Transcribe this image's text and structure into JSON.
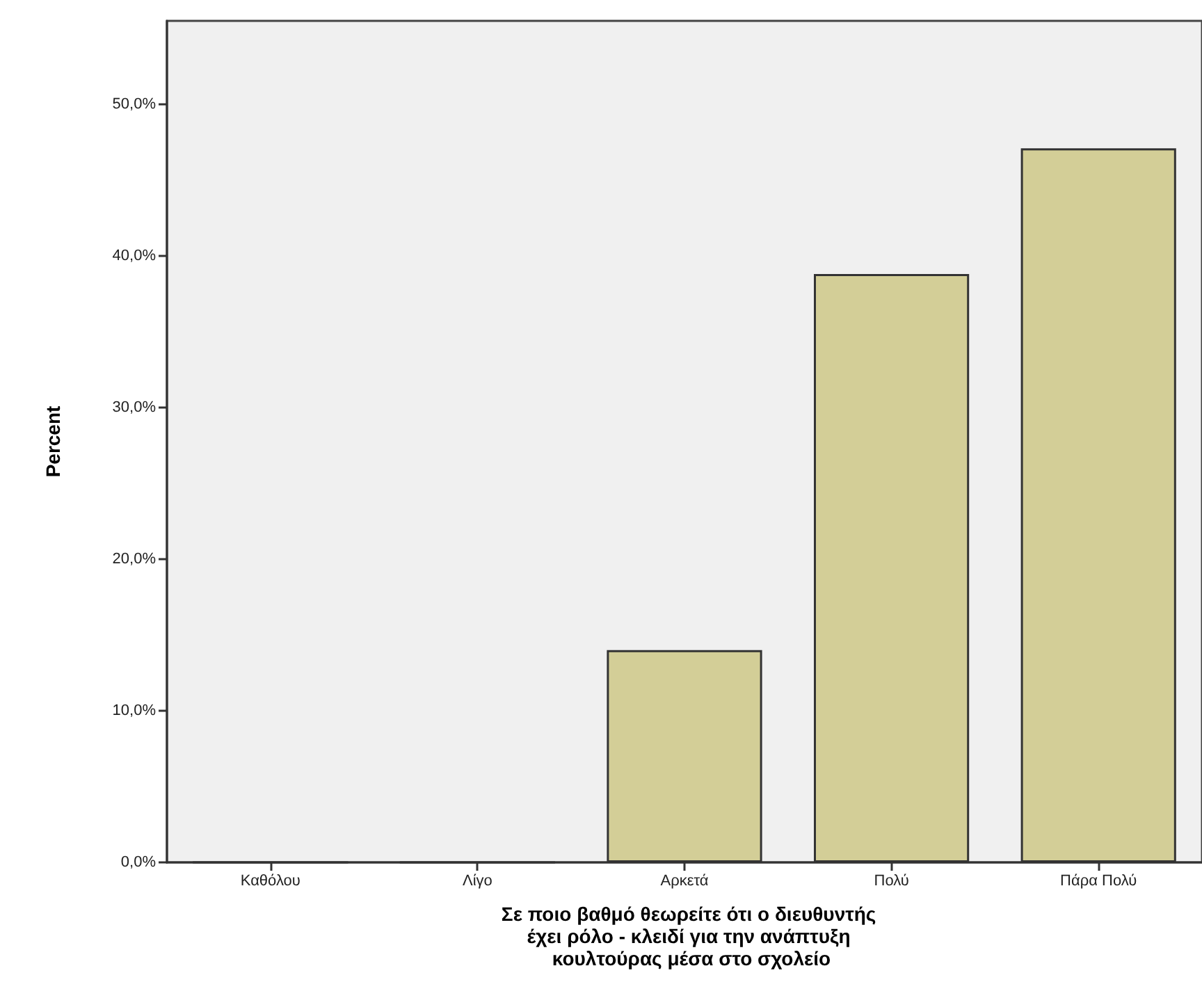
{
  "chart_data": {
    "type": "bar",
    "categories": [
      "Καθόλου",
      "Λίγο",
      "Αρκετά",
      "Πολύ",
      "Πάρα Πολύ"
    ],
    "values": [
      0,
      0,
      14.0,
      38.8,
      47.1
    ],
    "color": "#d3ce97",
    "xlabel": "Σε ποιο βαθμό θεωρείτε ότι ο διευθυντής έχει ρόλο - κλειδί για την ανάπτυξη κουλτούρας μέσα στο σχολείο",
    "ylabel": "Percent",
    "ylim": [
      0,
      55.5
    ],
    "yticks": [
      {
        "value": 0,
        "label": "0,0%"
      },
      {
        "value": 10,
        "label": "10,0%"
      },
      {
        "value": 20,
        "label": "20,0%"
      },
      {
        "value": 30,
        "label": "30,0%"
      },
      {
        "value": 40,
        "label": "40,0%"
      },
      {
        "value": 50,
        "label": "50,0%"
      }
    ],
    "grid": false
  }
}
